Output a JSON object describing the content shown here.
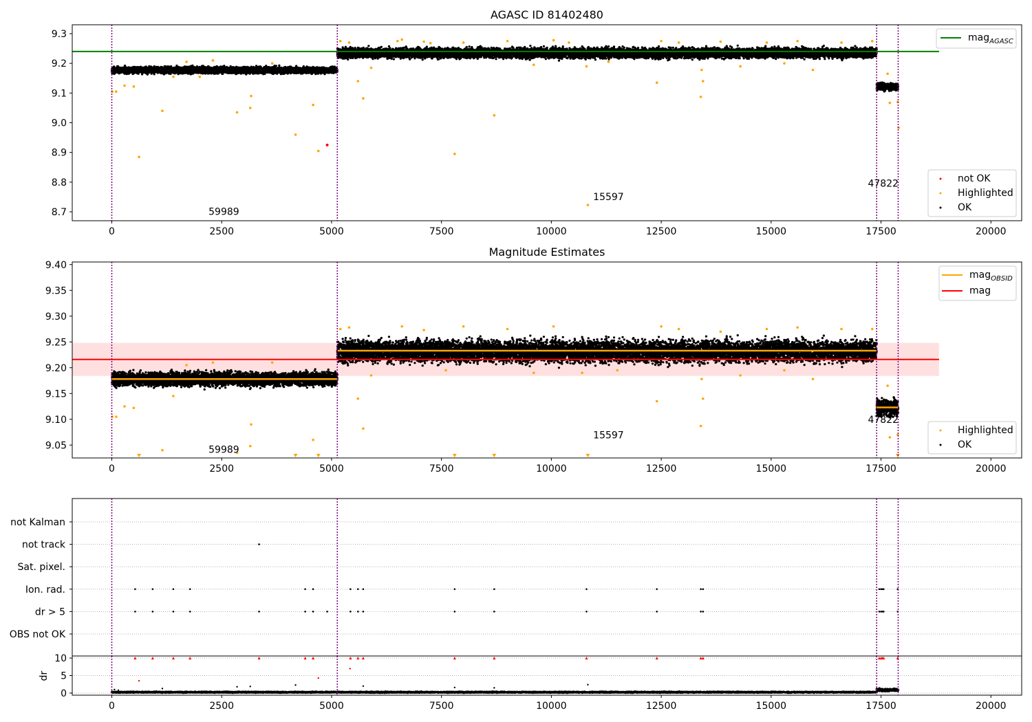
{
  "chart_data": [
    {
      "type": "scatter",
      "title": "AGASC ID 81402480",
      "xlabel": "",
      "ylabel": "",
      "xlim": [
        -900,
        20700
      ],
      "ylim": [
        8.67,
        9.33
      ],
      "x_ticks": [
        0,
        2500,
        5000,
        7500,
        10000,
        12500,
        15000,
        17500,
        20000
      ],
      "y_ticks": [
        8.7,
        8.8,
        8.9,
        9.0,
        9.1,
        9.2,
        9.3
      ],
      "grid": false,
      "legend_placement_upper": "top-right",
      "legend_placement_lower": "bottom-right",
      "legend_upper": [
        {
          "name": "mag",
          "subscript": "AGASC",
          "kind": "line",
          "color": "#008000"
        }
      ],
      "legend_lower": [
        {
          "name": "not OK",
          "kind": "point",
          "color": "#ff0000"
        },
        {
          "name": "Highlighted",
          "kind": "point",
          "color": "#ffa500"
        },
        {
          "name": "OK",
          "kind": "point",
          "color": "#000000"
        }
      ],
      "vertical_lines_x": [
        0,
        5130,
        17400,
        17890
      ],
      "vertical_line_color": "#800080",
      "reference_line": {
        "name": "mag_AGASC",
        "y": 9.24,
        "x_start": -900,
        "x_end": 18820,
        "color": "#008000"
      },
      "ok_bands": [
        {
          "x_start": 0,
          "x_end": 5130,
          "center": 9.177,
          "half_width": 0.018
        },
        {
          "x_start": 5130,
          "x_end": 17400,
          "center": 9.235,
          "half_width": 0.028
        },
        {
          "x_start": 17400,
          "x_end": 17890,
          "center": 9.122,
          "half_width": 0.02
        }
      ],
      "highlighted_points": [
        [
          10,
          9.105
        ],
        [
          100,
          9.105
        ],
        [
          290,
          9.125
        ],
        [
          500,
          9.122
        ],
        [
          620,
          8.885
        ],
        [
          1150,
          9.04
        ],
        [
          1400,
          9.155
        ],
        [
          1700,
          9.205
        ],
        [
          2000,
          9.155
        ],
        [
          2300,
          9.21
        ],
        [
          2850,
          9.035
        ],
        [
          3150,
          9.05
        ],
        [
          3170,
          9.09
        ],
        [
          3650,
          9.2
        ],
        [
          4180,
          8.96
        ],
        [
          4580,
          9.06
        ],
        [
          4700,
          8.905
        ],
        [
          5200,
          9.275
        ],
        [
          5400,
          9.27
        ],
        [
          5600,
          9.14
        ],
        [
          5720,
          9.082
        ],
        [
          5900,
          9.185
        ],
        [
          6500,
          9.275
        ],
        [
          6600,
          9.28
        ],
        [
          7100,
          9.273
        ],
        [
          7250,
          9.268
        ],
        [
          7800,
          8.895
        ],
        [
          8000,
          9.27
        ],
        [
          8700,
          9.025
        ],
        [
          9000,
          9.275
        ],
        [
          9600,
          9.195
        ],
        [
          10050,
          9.278
        ],
        [
          10400,
          9.27
        ],
        [
          10800,
          9.19
        ],
        [
          10830,
          8.723
        ],
        [
          11300,
          9.205
        ],
        [
          12400,
          9.135
        ],
        [
          12500,
          9.275
        ],
        [
          12900,
          9.27
        ],
        [
          13400,
          9.087
        ],
        [
          13420,
          9.178
        ],
        [
          13450,
          9.14
        ],
        [
          13850,
          9.273
        ],
        [
          14300,
          9.19
        ],
        [
          14900,
          9.27
        ],
        [
          15300,
          9.2
        ],
        [
          15600,
          9.275
        ],
        [
          15950,
          9.178
        ],
        [
          16600,
          9.27
        ],
        [
          17300,
          9.275
        ],
        [
          17650,
          9.165
        ],
        [
          17700,
          9.067
        ],
        [
          17900,
          8.983
        ],
        [
          17880,
          9.07
        ]
      ],
      "not_ok_points": [
        [
          4900,
          8.925
        ]
      ],
      "annotations": [
        {
          "text": "59989",
          "x": 2550,
          "y": 8.69
        },
        {
          "text": "15597",
          "x": 11300,
          "y": 8.74
        },
        {
          "text": "47822",
          "x": 17550,
          "y": 8.785
        }
      ]
    },
    {
      "type": "scatter",
      "title": "Magnitude Estimates",
      "xlabel": "",
      "ylabel": "",
      "xlim": [
        -900,
        20700
      ],
      "ylim": [
        9.025,
        9.405
      ],
      "x_ticks": [
        0,
        2500,
        5000,
        7500,
        10000,
        12500,
        15000,
        17500,
        20000
      ],
      "y_ticks": [
        9.05,
        9.1,
        9.15,
        9.2,
        9.25,
        9.3,
        9.35,
        9.4
      ],
      "grid": false,
      "legend_placement_upper": "top-right",
      "legend_placement_lower": "bottom-right",
      "legend_upper": [
        {
          "name": "mag",
          "subscript": "OBSID",
          "kind": "line",
          "color": "#ffa500"
        },
        {
          "name": "mag",
          "subscript": "",
          "kind": "line",
          "color": "#ff0000"
        }
      ],
      "legend_lower": [
        {
          "name": "Highlighted",
          "kind": "point",
          "color": "#ffa500"
        },
        {
          "name": "OK",
          "kind": "point",
          "color": "#000000"
        }
      ],
      "vertical_lines_x": [
        0,
        5130,
        17400,
        17890
      ],
      "vertical_line_color": "#800080",
      "mag_line": {
        "y": 9.216,
        "x_start": -900,
        "x_end": 18820,
        "color": "#ff0000",
        "band": [
          9.184,
          9.248
        ]
      },
      "obsid_segments": [
        {
          "x_start": 0,
          "x_end": 5130,
          "y": 9.178
        },
        {
          "x_start": 5130,
          "x_end": 17400,
          "y": 9.233
        },
        {
          "x_start": 17400,
          "x_end": 17890,
          "y": 9.123
        }
      ],
      "ok_bands": [
        {
          "x_start": 0,
          "x_end": 5130,
          "center": 9.178,
          "half_width": 0.022
        },
        {
          "x_start": 5130,
          "x_end": 17400,
          "center": 9.232,
          "half_width": 0.035
        },
        {
          "x_start": 17400,
          "x_end": 17890,
          "center": 9.122,
          "half_width": 0.025
        }
      ],
      "highlighted_points": [
        [
          10,
          9.105
        ],
        [
          100,
          9.105
        ],
        [
          290,
          9.125
        ],
        [
          500,
          9.122
        ],
        [
          1150,
          9.04
        ],
        [
          1400,
          9.145
        ],
        [
          1700,
          9.205
        ],
        [
          2300,
          9.21
        ],
        [
          2850,
          9.035
        ],
        [
          3150,
          9.048
        ],
        [
          3170,
          9.09
        ],
        [
          3650,
          9.21
        ],
        [
          4580,
          9.06
        ],
        [
          5200,
          9.275
        ],
        [
          5400,
          9.278
        ],
        [
          5600,
          9.14
        ],
        [
          5720,
          9.082
        ],
        [
          5900,
          9.185
        ],
        [
          6600,
          9.28
        ],
        [
          7100,
          9.273
        ],
        [
          7600,
          9.195
        ],
        [
          8000,
          9.28
        ],
        [
          9000,
          9.275
        ],
        [
          9600,
          9.19
        ],
        [
          10050,
          9.28
        ],
        [
          10700,
          9.19
        ],
        [
          11500,
          9.195
        ],
        [
          12400,
          9.135
        ],
        [
          12500,
          9.28
        ],
        [
          12900,
          9.275
        ],
        [
          13400,
          9.087
        ],
        [
          13420,
          9.178
        ],
        [
          13450,
          9.14
        ],
        [
          13850,
          9.27
        ],
        [
          14300,
          9.185
        ],
        [
          14900,
          9.275
        ],
        [
          15300,
          9.195
        ],
        [
          15600,
          9.278
        ],
        [
          15950,
          9.178
        ],
        [
          16600,
          9.275
        ],
        [
          17300,
          9.275
        ],
        [
          17650,
          9.165
        ],
        [
          17700,
          9.065
        ],
        [
          17880,
          9.07
        ]
      ],
      "clipped_markers_x": [
        620,
        4180,
        4700,
        7800,
        8700,
        10830,
        17880
      ],
      "annotations": [
        {
          "text": "59989",
          "x": 2550,
          "y": 9.035
        },
        {
          "text": "15597",
          "x": 11300,
          "y": 9.063
        },
        {
          "text": "47822",
          "x": 17550,
          "y": 9.093
        }
      ]
    },
    {
      "type": "scatter",
      "title": "",
      "xlabel": "",
      "ylabel": "",
      "xlim": [
        -900,
        20700
      ],
      "x_ticks": [
        0,
        2500,
        5000,
        7500,
        10000,
        12500,
        15000,
        17500,
        20000
      ],
      "category_rows": [
        "not Kalman",
        "not track",
        "Sat. pixel.",
        "Ion. rad.",
        "dr > 5",
        "OBS not OK"
      ],
      "vertical_lines_x": [
        0,
        5130,
        17400,
        17890
      ],
      "flag_points": {
        "not track": [
          3350
        ],
        "Ion. rad.": [
          530,
          930,
          1400,
          1780,
          4400,
          4580,
          5430,
          5600,
          5720,
          7800,
          8700,
          10800,
          12400,
          13400,
          13450,
          17460,
          17500,
          17530,
          17560,
          17880
        ],
        "dr > 5": [
          530,
          930,
          1400,
          1780,
          3350,
          4400,
          4580,
          4900,
          5430,
          5600,
          5720,
          7800,
          8700,
          10800,
          12400,
          13400,
          13450,
          17460,
          17500,
          17530,
          17560,
          17880
        ]
      }
    },
    {
      "type": "scatter",
      "title": "",
      "xlabel": "",
      "ylabel": "dr",
      "xlim": [
        -900,
        20700
      ],
      "ylim": [
        -0.6,
        10.6
      ],
      "x_ticks": [
        0,
        2500,
        5000,
        7500,
        10000,
        12500,
        15000,
        17500,
        20000
      ],
      "y_ticks": [
        0,
        5,
        10
      ],
      "grid": true,
      "vertical_lines_x": [
        0,
        5130,
        17400,
        17890
      ],
      "baseline_bands": [
        {
          "x_start": 0,
          "x_end": 17400,
          "center": 0.25,
          "half_width": 0.25
        },
        {
          "x_start": 17400,
          "x_end": 17890,
          "center": 0.9,
          "half_width": 0.6
        }
      ],
      "black_points": [
        [
          60,
          1.0
        ],
        [
          150,
          0.8
        ],
        [
          1150,
          1.3
        ],
        [
          2850,
          1.8
        ],
        [
          3150,
          1.9
        ],
        [
          4180,
          2.3
        ],
        [
          5720,
          2.0
        ],
        [
          7800,
          1.6
        ],
        [
          8700,
          1.5
        ],
        [
          10830,
          2.4
        ]
      ],
      "red_markers_at_top": [
        530,
        930,
        1400,
        1780,
        3350,
        4400,
        4580,
        5430,
        5600,
        5720,
        7800,
        8700,
        10800,
        12400,
        13400,
        13450,
        17460,
        17500,
        17530,
        17560,
        17880
      ],
      "red_points": [
        [
          620,
          3.5
        ],
        [
          4700,
          4.3
        ],
        [
          5420,
          7.0
        ]
      ]
    }
  ]
}
